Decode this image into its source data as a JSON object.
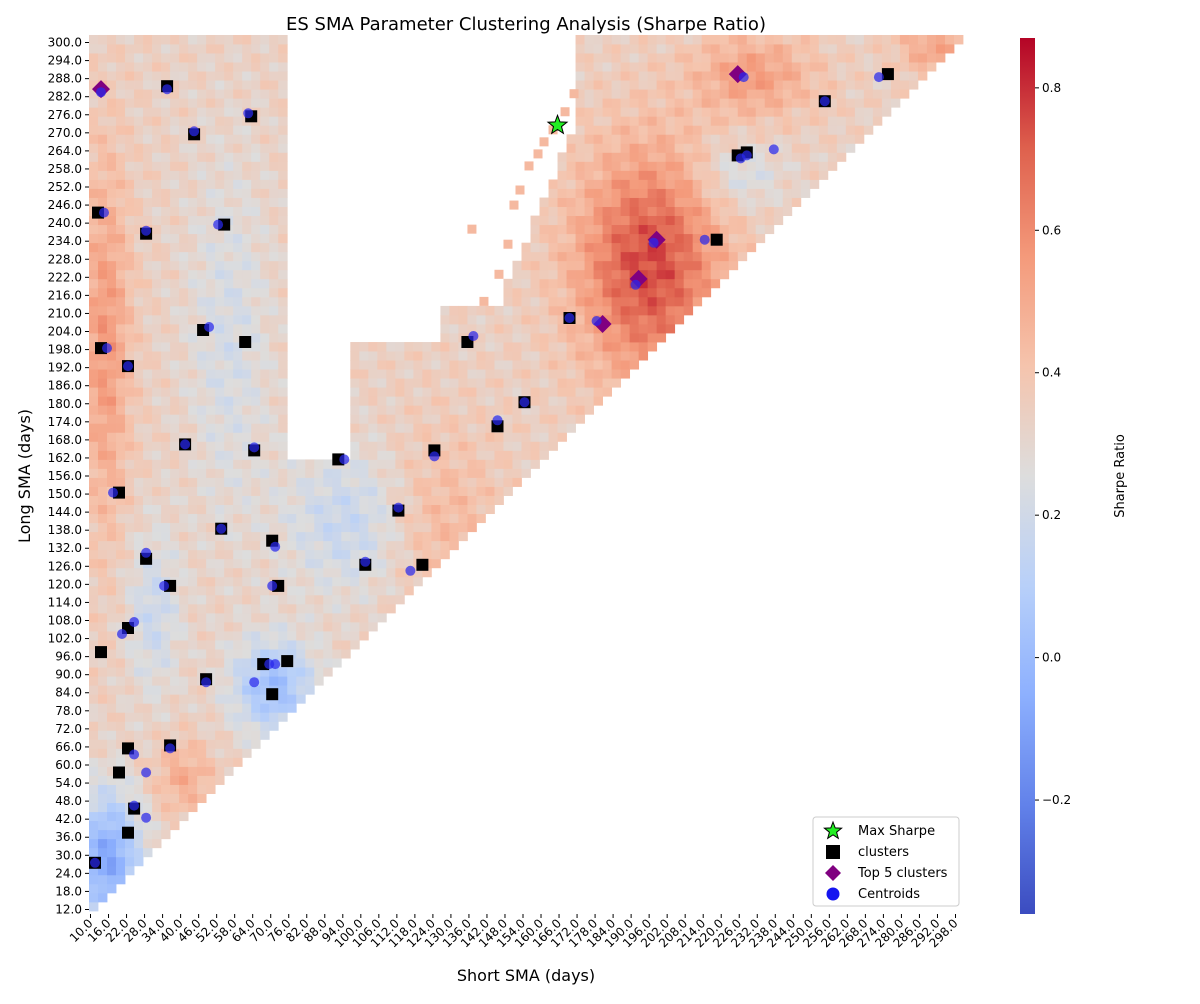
{
  "chart_data": {
    "type": "heatmap",
    "title": "ES SMA Parameter Clustering Analysis (Sharpe Ratio)",
    "xlabel": "Short SMA (days)",
    "ylabel": "Long SMA (days)",
    "colorbar_label": "Sharpe Ratio",
    "colorbar_range": [
      -0.36,
      0.87
    ],
    "colorbar_ticks": [
      -0.2,
      0.0,
      0.2,
      0.4,
      0.6,
      0.8
    ],
    "colorbar_tick_labels": [
      "−0.2",
      "0.0",
      "0.2",
      "0.4",
      "0.6",
      "0.8"
    ],
    "colormap": "coolwarm",
    "x_ticks": [
      "10.0",
      "16.0",
      "22.0",
      "28.0",
      "34.0",
      "40.0",
      "46.0",
      "52.0",
      "58.0",
      "64.0",
      "70.0",
      "76.0",
      "82.0",
      "88.0",
      "94.0",
      "100.0",
      "106.0",
      "112.0",
      "118.0",
      "124.0",
      "130.0",
      "136.0",
      "142.0",
      "148.0",
      "154.0",
      "160.0",
      "166.0",
      "172.0",
      "178.0",
      "184.0",
      "190.0",
      "196.0",
      "202.0",
      "208.0",
      "214.0",
      "220.0",
      "226.0",
      "232.0",
      "238.0",
      "244.0",
      "250.0",
      "256.0",
      "262.0",
      "268.0",
      "274.0",
      "280.0",
      "286.0",
      "292.0",
      "298.0"
    ],
    "y_ticks": [
      "300.0",
      "294.0",
      "288.0",
      "282.0",
      "276.0",
      "270.0",
      "264.0",
      "258.0",
      "252.0",
      "246.0",
      "240.0",
      "234.0",
      "228.0",
      "222.0",
      "216.0",
      "210.0",
      "204.0",
      "198.0",
      "192.0",
      "186.0",
      "180.0",
      "174.0",
      "168.0",
      "162.0",
      "156.0",
      "150.0",
      "144.0",
      "138.0",
      "132.0",
      "126.0",
      "120.0",
      "114.0",
      "108.0",
      "102.0",
      "96.0",
      "90.0",
      "84.0",
      "78.0",
      "72.0",
      "66.0",
      "60.0",
      "54.0",
      "48.0",
      "42.0",
      "36.0",
      "30.0",
      "24.0",
      "18.0",
      "12.0"
    ],
    "heatmap_notes": "Sharpe ratio over short/long SMA pairs (long > short); strongest values (~0.6-0.87) along diagonal band short 170-240, long 190-290; lowest (~-0.35) at short < 20, long < 40.",
    "max_sharpe": {
      "x": 166,
      "y": 273
    },
    "clusters": [
      {
        "x": 36,
        "y": 286
      },
      {
        "x": 45,
        "y": 270
      },
      {
        "x": 64,
        "y": 276
      },
      {
        "x": 13,
        "y": 244
      },
      {
        "x": 29,
        "y": 237
      },
      {
        "x": 55,
        "y": 240
      },
      {
        "x": 48,
        "y": 205
      },
      {
        "x": 62,
        "y": 201
      },
      {
        "x": 14,
        "y": 199
      },
      {
        "x": 23,
        "y": 193
      },
      {
        "x": 42,
        "y": 167
      },
      {
        "x": 65,
        "y": 165
      },
      {
        "x": 20,
        "y": 151
      },
      {
        "x": 54,
        "y": 139
      },
      {
        "x": 71,
        "y": 135
      },
      {
        "x": 29,
        "y": 129
      },
      {
        "x": 37,
        "y": 120
      },
      {
        "x": 73,
        "y": 120
      },
      {
        "x": 23,
        "y": 106
      },
      {
        "x": 14,
        "y": 98
      },
      {
        "x": 49,
        "y": 89
      },
      {
        "x": 68,
        "y": 94
      },
      {
        "x": 76,
        "y": 95
      },
      {
        "x": 71,
        "y": 84
      },
      {
        "x": 23,
        "y": 66
      },
      {
        "x": 37,
        "y": 67
      },
      {
        "x": 20,
        "y": 58
      },
      {
        "x": 25,
        "y": 46
      },
      {
        "x": 23,
        "y": 38
      },
      {
        "x": 12,
        "y": 28
      },
      {
        "x": 93,
        "y": 162
      },
      {
        "x": 125,
        "y": 165
      },
      {
        "x": 113,
        "y": 145
      },
      {
        "x": 102,
        "y": 127
      },
      {
        "x": 121,
        "y": 127
      },
      {
        "x": 136,
        "y": 201
      },
      {
        "x": 146,
        "y": 173
      },
      {
        "x": 155,
        "y": 181
      },
      {
        "x": 170,
        "y": 209
      },
      {
        "x": 219,
        "y": 235
      },
      {
        "x": 226,
        "y": 263
      },
      {
        "x": 229,
        "y": 264
      },
      {
        "x": 255,
        "y": 281
      },
      {
        "x": 276,
        "y": 290
      }
    ],
    "top5_clusters": [
      {
        "x": 14,
        "y": 285
      },
      {
        "x": 226,
        "y": 290
      },
      {
        "x": 199,
        "y": 235
      },
      {
        "x": 193,
        "y": 222
      },
      {
        "x": 181,
        "y": 207
      }
    ],
    "centroids": [
      {
        "x": 14,
        "y": 284
      },
      {
        "x": 36,
        "y": 285
      },
      {
        "x": 45,
        "y": 271
      },
      {
        "x": 63,
        "y": 277
      },
      {
        "x": 15,
        "y": 244
      },
      {
        "x": 29,
        "y": 238
      },
      {
        "x": 53,
        "y": 240
      },
      {
        "x": 50,
        "y": 206
      },
      {
        "x": 16,
        "y": 199
      },
      {
        "x": 23,
        "y": 193
      },
      {
        "x": 42,
        "y": 167
      },
      {
        "x": 65,
        "y": 166
      },
      {
        "x": 18,
        "y": 151
      },
      {
        "x": 54,
        "y": 139
      },
      {
        "x": 72,
        "y": 133
      },
      {
        "x": 29,
        "y": 131
      },
      {
        "x": 35,
        "y": 120
      },
      {
        "x": 71,
        "y": 120
      },
      {
        "x": 25,
        "y": 108
      },
      {
        "x": 21,
        "y": 104
      },
      {
        "x": 49,
        "y": 88
      },
      {
        "x": 70,
        "y": 94
      },
      {
        "x": 72,
        "y": 94
      },
      {
        "x": 65,
        "y": 88
      },
      {
        "x": 25,
        "y": 64
      },
      {
        "x": 37,
        "y": 66
      },
      {
        "x": 29,
        "y": 58
      },
      {
        "x": 25,
        "y": 47
      },
      {
        "x": 29,
        "y": 43
      },
      {
        "x": 12,
        "y": 28
      },
      {
        "x": 95,
        "y": 162
      },
      {
        "x": 125,
        "y": 163
      },
      {
        "x": 113,
        "y": 146
      },
      {
        "x": 102,
        "y": 128
      },
      {
        "x": 117,
        "y": 125
      },
      {
        "x": 138,
        "y": 203
      },
      {
        "x": 146,
        "y": 175
      },
      {
        "x": 155,
        "y": 181
      },
      {
        "x": 170,
        "y": 209
      },
      {
        "x": 179,
        "y": 208
      },
      {
        "x": 198,
        "y": 234
      },
      {
        "x": 192,
        "y": 220
      },
      {
        "x": 215,
        "y": 235
      },
      {
        "x": 227,
        "y": 262
      },
      {
        "x": 229,
        "y": 263
      },
      {
        "x": 238,
        "y": 265
      },
      {
        "x": 228,
        "y": 289
      },
      {
        "x": 255,
        "y": 281
      },
      {
        "x": 273,
        "y": 289
      }
    ],
    "legend": {
      "position": "lower right",
      "entries": [
        "Max Sharpe",
        "clusters",
        "Top 5 clusters",
        "Centroids"
      ]
    }
  }
}
